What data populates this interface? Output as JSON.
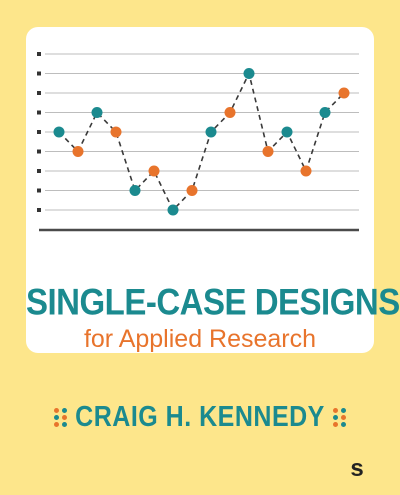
{
  "cover": {
    "title": "SINGLE-CASE DESIGNS",
    "subtitle": "for Applied Research",
    "author": "CRAIG H. KENNEDY",
    "publisher_logo_letter": "s"
  },
  "colors": {
    "background": "#fde68b",
    "teal": "#1b8a8f",
    "orange": "#e8742c",
    "card": "#ffffff"
  },
  "chart_data": {
    "type": "line",
    "x": [
      1,
      2,
      3,
      4,
      5,
      6,
      7,
      8,
      9,
      10,
      11,
      12,
      13,
      14,
      15,
      16
    ],
    "values": [
      4,
      3,
      5,
      4,
      1,
      2,
      0,
      1,
      4,
      5,
      7,
      3,
      4,
      2,
      5,
      6
    ],
    "point_colors": [
      "teal",
      "orange",
      "teal",
      "orange",
      "teal",
      "orange",
      "teal",
      "orange",
      "teal",
      "orange",
      "teal",
      "orange",
      "teal",
      "orange",
      "teal",
      "orange"
    ],
    "ylim": [
      -0.5,
      8
    ],
    "grid": true,
    "line_style": "dashed"
  }
}
